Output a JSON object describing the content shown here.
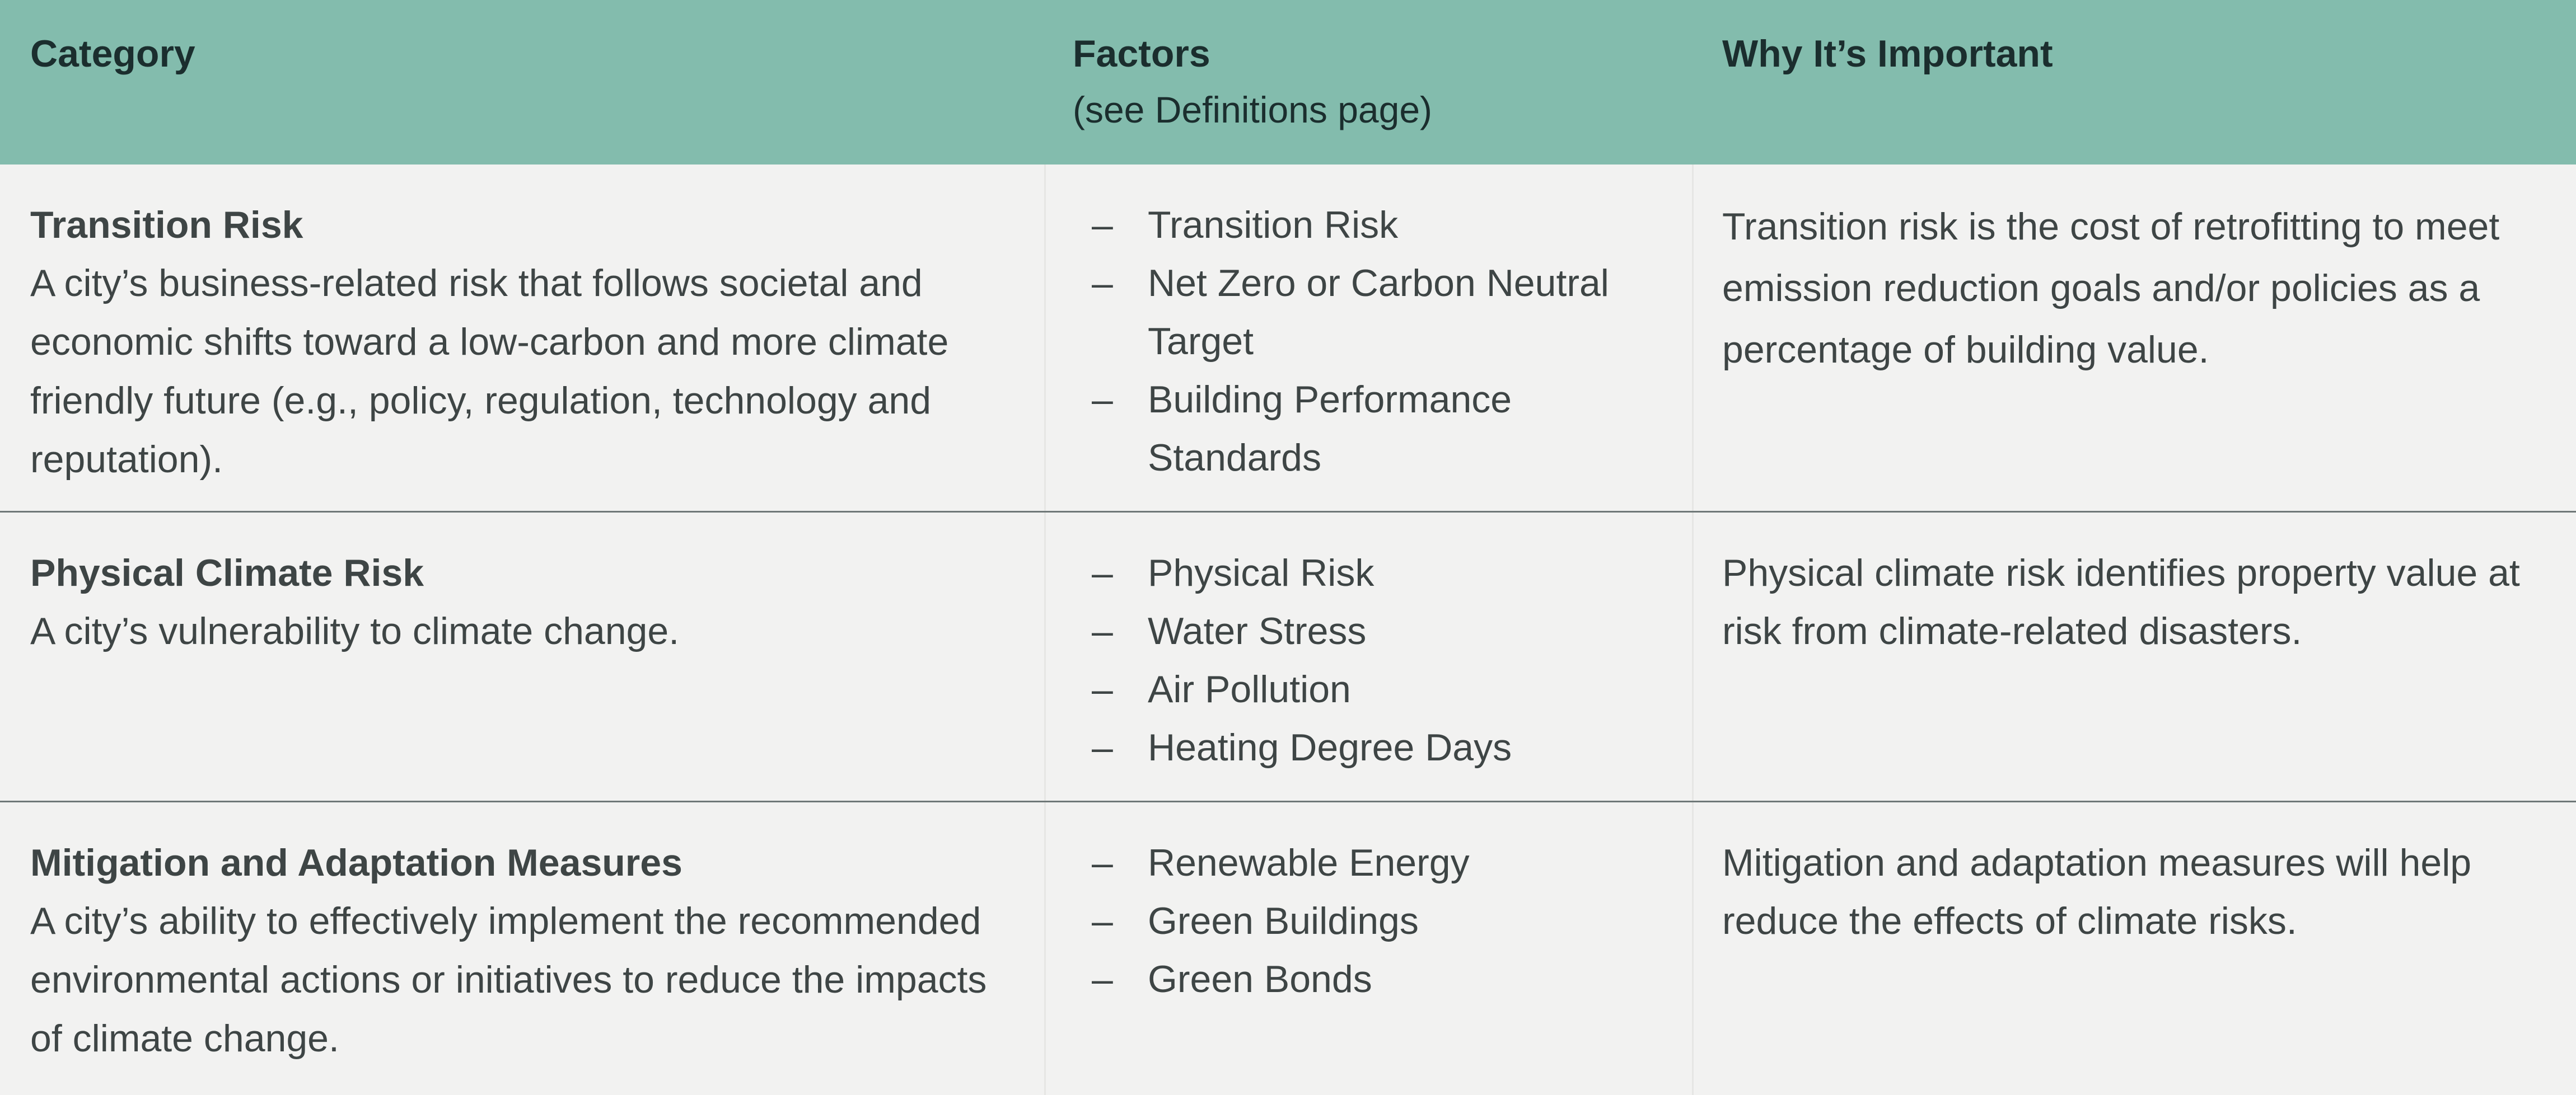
{
  "header": {
    "category": "Category",
    "factors": "Factors",
    "factors_sub": "(see Definitions page)",
    "why": "Why It’s Important"
  },
  "rows": [
    {
      "title": "Transition Risk",
      "description": "A city’s business-related risk that follows societal and economic shifts toward a low-carbon and more climate friendly future (e.g., policy, regulation, technology and reputation).",
      "factors": [
        "Transition Risk",
        "Net Zero or Carbon Neutral Target",
        "Building Performance Standards"
      ],
      "why": "Transition risk is the cost of retrofitting to meet emission reduction goals and/or policies as a percentage of building value."
    },
    {
      "title": "Physical Climate Risk",
      "description": "A city’s vulnerability to climate change.",
      "factors": [
        "Physical Risk",
        "Water Stress",
        "Air Pollution",
        "Heating Degree Days"
      ],
      "why": "Physical climate risk identifies property value at risk from climate-related disasters."
    },
    {
      "title": "Mitigation and Adaptation Measures",
      "description": "A city’s ability to effectively implement the recommended environmental actions or initiatives to reduce the impacts of climate change.",
      "factors": [
        "Renewable Energy",
        "Green Buildings",
        "Green Bonds"
      ],
      "why": "Mitigation and adaptation measures will help reduce the effects of climate risks."
    }
  ],
  "bullet": "–"
}
